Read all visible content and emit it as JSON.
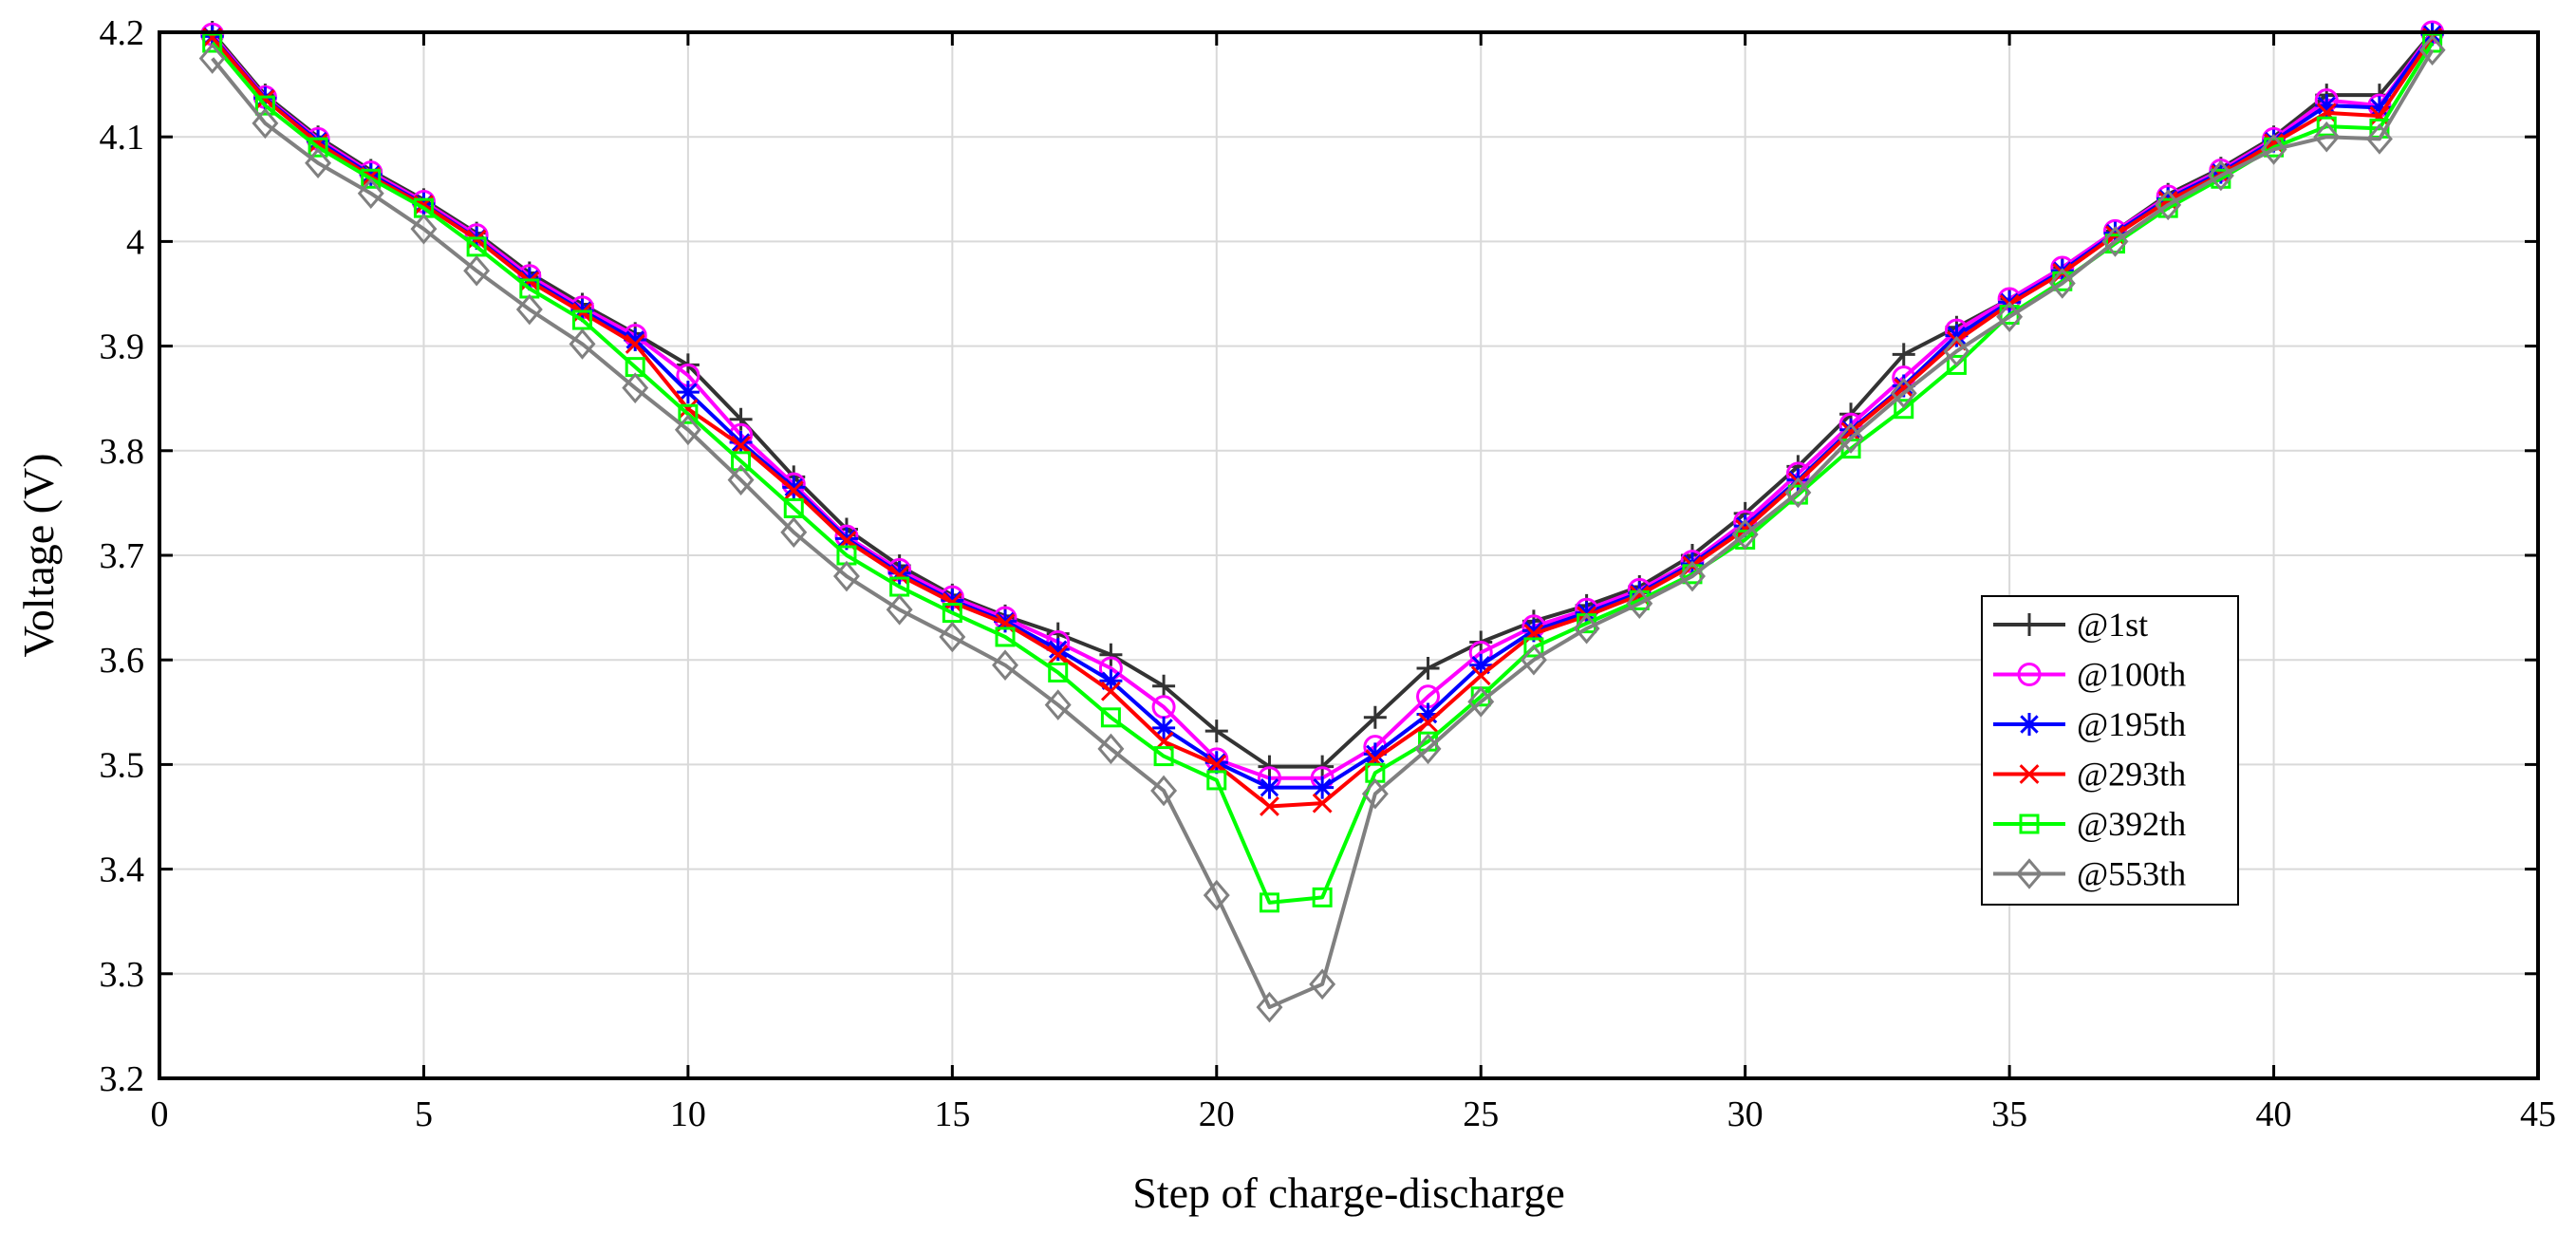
{
  "chart_data": {
    "type": "line",
    "title": "",
    "xlabel": "Step of charge-discharge",
    "ylabel": "Voltage (V)",
    "xlim": [
      0,
      45
    ],
    "ylim": [
      3.2,
      4.2
    ],
    "xticks": [
      0,
      5,
      10,
      15,
      20,
      25,
      30,
      35,
      40,
      45
    ],
    "yticks": [
      3.2,
      3.3,
      3.4,
      3.5,
      3.6,
      3.7,
      3.8,
      3.9,
      4,
      4.1,
      4.2
    ],
    "xtick_labels": [
      "0",
      "5",
      "10",
      "15",
      "20",
      "25",
      "30",
      "35",
      "40",
      "45"
    ],
    "ytick_labels": [
      "3.2",
      "3.3",
      "3.4",
      "3.5",
      "3.6",
      "3.7",
      "3.8",
      "3.9",
      "4",
      "4.1",
      "4.2"
    ],
    "grid": true,
    "legend_position": "right",
    "x": [
      1,
      2,
      3,
      4,
      5,
      6,
      7,
      8,
      9,
      10,
      11,
      12,
      13,
      14,
      15,
      16,
      17,
      18,
      19,
      20,
      21,
      22,
      23,
      24,
      25,
      26,
      27,
      28,
      29,
      30,
      31,
      32,
      33,
      34,
      35,
      36,
      37,
      38,
      39,
      40,
      41,
      42,
      43
    ],
    "series": [
      {
        "name": "@1st",
        "color": "#333333",
        "marker": "plus",
        "values": [
          4.2,
          4.14,
          4.1,
          4.068,
          4.04,
          4.008,
          3.97,
          3.94,
          3.912,
          3.882,
          3.83,
          3.775,
          3.725,
          3.69,
          3.662,
          3.642,
          3.625,
          3.605,
          3.575,
          3.532,
          3.498,
          3.498,
          3.545,
          3.592,
          3.617,
          3.637,
          3.652,
          3.67,
          3.7,
          3.74,
          3.785,
          3.835,
          3.892,
          3.918,
          3.945,
          3.975,
          4.01,
          4.045,
          4.07,
          4.1,
          4.14,
          4.14,
          4.2
        ]
      },
      {
        "name": "@100th",
        "color": "#ff00ff",
        "marker": "circle",
        "values": [
          4.198,
          4.138,
          4.098,
          4.066,
          4.038,
          4.006,
          3.967,
          3.937,
          3.91,
          3.872,
          3.815,
          3.768,
          3.718,
          3.686,
          3.66,
          3.64,
          3.617,
          3.592,
          3.555,
          3.505,
          3.487,
          3.487,
          3.517,
          3.565,
          3.607,
          3.632,
          3.648,
          3.667,
          3.694,
          3.732,
          3.778,
          3.825,
          3.87,
          3.915,
          3.945,
          3.975,
          4.01,
          4.043,
          4.068,
          4.098,
          4.135,
          4.13,
          4.2
        ]
      },
      {
        "name": "@195th",
        "color": "#0000ff",
        "marker": "asterisk",
        "values": [
          4.196,
          4.137,
          4.096,
          4.064,
          4.036,
          4.003,
          3.964,
          3.934,
          3.906,
          3.856,
          3.808,
          3.765,
          3.716,
          3.683,
          3.657,
          3.637,
          3.61,
          3.58,
          3.535,
          3.502,
          3.478,
          3.478,
          3.51,
          3.548,
          3.595,
          3.628,
          3.645,
          3.664,
          3.692,
          3.728,
          3.772,
          3.82,
          3.862,
          3.91,
          3.942,
          3.972,
          4.008,
          4.041,
          4.066,
          4.096,
          4.13,
          4.128,
          4.198
        ]
      },
      {
        "name": "@293th",
        "color": "#ff0000",
        "marker": "cross",
        "values": [
          4.195,
          4.136,
          4.094,
          4.062,
          4.035,
          4.002,
          3.962,
          3.932,
          3.902,
          3.84,
          3.805,
          3.762,
          3.714,
          3.681,
          3.655,
          3.635,
          3.605,
          3.57,
          3.522,
          3.5,
          3.46,
          3.463,
          3.505,
          3.54,
          3.585,
          3.625,
          3.642,
          3.662,
          3.69,
          3.725,
          3.77,
          3.818,
          3.86,
          3.905,
          3.94,
          3.97,
          4.006,
          4.039,
          4.064,
          4.094,
          4.123,
          4.12,
          4.195
        ]
      },
      {
        "name": "@392th",
        "color": "#00ff00",
        "marker": "square",
        "values": [
          4.19,
          4.13,
          4.09,
          4.06,
          4.032,
          3.995,
          3.955,
          3.925,
          3.88,
          3.835,
          3.79,
          3.745,
          3.7,
          3.67,
          3.645,
          3.622,
          3.588,
          3.545,
          3.508,
          3.485,
          3.368,
          3.373,
          3.492,
          3.522,
          3.565,
          3.612,
          3.635,
          3.657,
          3.682,
          3.715,
          3.758,
          3.802,
          3.84,
          3.882,
          3.93,
          3.962,
          3.998,
          4.032,
          4.06,
          4.09,
          4.11,
          4.108,
          4.19
        ]
      },
      {
        "name": "@553th",
        "color": "#808080",
        "marker": "diamond",
        "values": [
          4.175,
          4.113,
          4.075,
          4.046,
          4.012,
          3.972,
          3.935,
          3.902,
          3.86,
          3.82,
          3.772,
          3.722,
          3.68,
          3.648,
          3.622,
          3.595,
          3.557,
          3.515,
          3.475,
          3.375,
          3.268,
          3.29,
          3.472,
          3.515,
          3.56,
          3.6,
          3.63,
          3.654,
          3.68,
          3.72,
          3.76,
          3.812,
          3.855,
          3.895,
          3.928,
          3.96,
          4.0,
          4.035,
          4.063,
          4.088,
          4.1,
          4.098,
          4.183
        ]
      }
    ]
  }
}
